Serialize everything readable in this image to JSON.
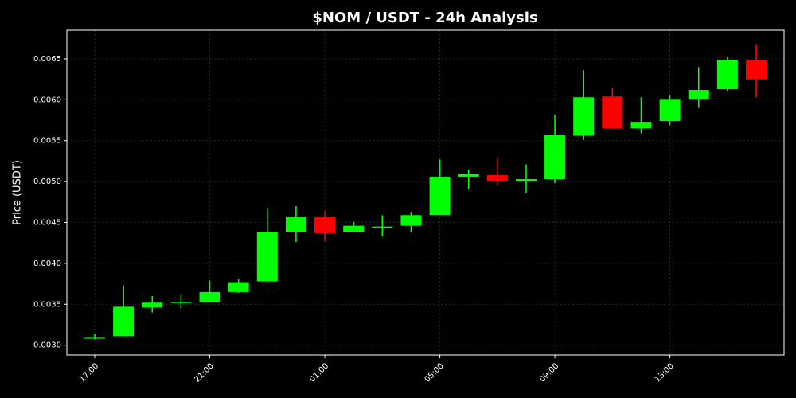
{
  "chart_data": {
    "type": "candlestick",
    "title": "$NOM / USDT - 24h Analysis",
    "y_label": "Price (USDT)",
    "categories": [
      "17:00",
      null,
      null,
      null,
      "21:00",
      null,
      null,
      null,
      "01:00",
      null,
      null,
      null,
      "05:00",
      null,
      null,
      null,
      "09:00",
      null,
      null,
      null,
      "13:00",
      null,
      null,
      null
    ],
    "open": [
      0.00308,
      0.00311,
      0.00346,
      0.00352,
      0.00353,
      0.00365,
      0.00378,
      0.00438,
      0.00457,
      0.00438,
      0.00444,
      0.00446,
      0.00459,
      0.00506,
      0.00508,
      0.005,
      0.00503,
      0.00556,
      0.00604,
      0.00565,
      0.00574,
      0.00601,
      0.00613,
      0.00648
    ],
    "high": [
      0.00314,
      0.00373,
      0.0036,
      0.00361,
      0.00379,
      0.00381,
      0.00468,
      0.0047,
      0.00464,
      0.00451,
      0.00459,
      0.00463,
      0.00527,
      0.00515,
      0.0053,
      0.00521,
      0.00581,
      0.00636,
      0.00615,
      0.00603,
      0.00606,
      0.0064,
      0.00652,
      0.00668
    ],
    "low": [
      0.00307,
      0.00311,
      0.0034,
      0.00345,
      0.00353,
      0.00364,
      0.00377,
      0.00426,
      0.00427,
      0.00438,
      0.00433,
      0.00438,
      0.00459,
      0.00491,
      0.00495,
      0.00486,
      0.00498,
      0.00551,
      0.00565,
      0.00559,
      0.00569,
      0.0059,
      0.00611,
      0.00603
    ],
    "close": [
      0.0031,
      0.00347,
      0.00352,
      0.00353,
      0.00365,
      0.00377,
      0.00438,
      0.00457,
      0.00437,
      0.00446,
      0.00445,
      0.00459,
      0.00506,
      0.00509,
      0.005,
      0.00503,
      0.00557,
      0.00603,
      0.00565,
      0.00573,
      0.00601,
      0.00612,
      0.00649,
      0.00625
    ],
    "up_color": "#00ff00",
    "down_color": "#ff0000",
    "ylim": [
      0.00288,
      0.00685
    ],
    "yticks": [
      {
        "value": 0.003,
        "label": "0.0030"
      },
      {
        "value": 0.0035,
        "label": "0.0035"
      },
      {
        "value": 0.004,
        "label": "0.0040"
      },
      {
        "value": 0.0045,
        "label": "0.0045"
      },
      {
        "value": 0.005,
        "label": "0.0050"
      },
      {
        "value": 0.0055,
        "label": "0.0055"
      },
      {
        "value": 0.006,
        "label": "0.0060"
      },
      {
        "value": 0.0065,
        "label": "0.0065"
      }
    ],
    "grid": true
  }
}
